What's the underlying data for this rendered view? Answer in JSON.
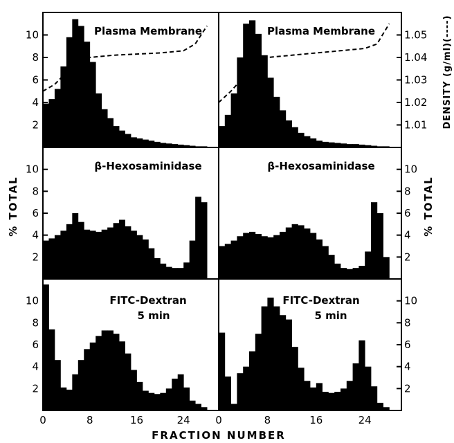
{
  "figure": {
    "xlabel": "FRACTION NUMBER",
    "ylabel_left": "% TOTAL",
    "ylabel_right_middle": "% TOTAL",
    "ylabel_right_top": "DENSITY (g/ml)(----)"
  },
  "chart_data": [
    {
      "type": "bar",
      "panel": "top-left",
      "title": "Plasma Membrane",
      "x": [
        1,
        2,
        3,
        4,
        5,
        6,
        7,
        8,
        9,
        10,
        11,
        12,
        13,
        14,
        15,
        16,
        17,
        18,
        19,
        20,
        21,
        22,
        23,
        24,
        25,
        26,
        27,
        28
      ],
      "values": [
        3.9,
        4.3,
        5.2,
        7.2,
        9.8,
        11.4,
        10.8,
        9.4,
        7.6,
        4.8,
        3.4,
        2.6,
        1.9,
        1.5,
        1.2,
        0.9,
        0.8,
        0.7,
        0.6,
        0.5,
        0.4,
        0.35,
        0.3,
        0.25,
        0.2,
        0.15,
        0.1,
        0.1
      ],
      "density_curve": {
        "x": [
          0,
          2,
          5,
          8,
          12,
          16,
          20,
          24,
          26,
          28
        ],
        "y": [
          1.025,
          1.028,
          1.036,
          1.04,
          1.041,
          1.0415,
          1.042,
          1.043,
          1.046,
          1.054
        ]
      },
      "xlim": [
        0,
        30
      ],
      "ylim": [
        0,
        12
      ],
      "y_ticks": [
        2,
        4,
        6,
        8,
        10
      ],
      "density_ticks": [
        1.01,
        1.02,
        1.03,
        1.04,
        1.05
      ]
    },
    {
      "type": "bar",
      "panel": "top-right",
      "title": "Plasma Membrane",
      "x": [
        1,
        2,
        3,
        4,
        5,
        6,
        7,
        8,
        9,
        10,
        11,
        12,
        13,
        14,
        15,
        16,
        17,
        18,
        19,
        20,
        21,
        22,
        23,
        24,
        25,
        26,
        27,
        28
      ],
      "values": [
        1.9,
        2.9,
        4.8,
        8.0,
        11.0,
        11.3,
        10.1,
        8.2,
        6.2,
        4.5,
        3.3,
        2.4,
        1.8,
        1.3,
        1.0,
        0.8,
        0.6,
        0.5,
        0.45,
        0.4,
        0.35,
        0.3,
        0.3,
        0.25,
        0.2,
        0.15,
        0.1,
        0.1
      ],
      "density_curve": {
        "x": [
          0,
          2,
          4,
          6,
          8,
          12,
          16,
          20,
          24,
          26,
          28
        ],
        "y": [
          1.02,
          1.025,
          1.031,
          1.037,
          1.04,
          1.041,
          1.042,
          1.043,
          1.044,
          1.046,
          1.055
        ]
      },
      "xlim": [
        0,
        30
      ],
      "ylim": [
        0,
        12
      ],
      "density_ticks": [
        1.01,
        1.02,
        1.03,
        1.04,
        1.05
      ]
    },
    {
      "type": "bar",
      "panel": "middle-left",
      "title": "β-Hexosaminidase",
      "x": [
        1,
        2,
        3,
        4,
        5,
        6,
        7,
        8,
        9,
        10,
        11,
        12,
        13,
        14,
        15,
        16,
        17,
        18,
        19,
        20,
        21,
        22,
        23,
        24,
        25,
        26,
        27,
        28
      ],
      "values": [
        3.5,
        3.7,
        4.0,
        4.4,
        5.0,
        6.0,
        5.2,
        4.5,
        4.4,
        4.3,
        4.5,
        4.7,
        5.1,
        5.4,
        4.8,
        4.4,
        4.0,
        3.6,
        2.8,
        1.9,
        1.4,
        1.1,
        1.0,
        1.0,
        1.5,
        3.5,
        7.5,
        7.0
      ],
      "xlim": [
        0,
        30
      ],
      "ylim": [
        0,
        12
      ],
      "y_ticks": [
        2,
        4,
        6,
        8,
        10
      ]
    },
    {
      "type": "bar",
      "panel": "middle-right",
      "title": "β-Hexosaminidase",
      "x": [
        1,
        2,
        3,
        4,
        5,
        6,
        7,
        8,
        9,
        10,
        11,
        12,
        13,
        14,
        15,
        16,
        17,
        18,
        19,
        20,
        21,
        22,
        23,
        24,
        25,
        26,
        27,
        28
      ],
      "values": [
        3.0,
        3.2,
        3.5,
        3.9,
        4.2,
        4.3,
        4.1,
        3.9,
        3.8,
        4.0,
        4.3,
        4.7,
        5.0,
        4.9,
        4.6,
        4.2,
        3.6,
        3.0,
        2.2,
        1.4,
        1.0,
        0.9,
        1.0,
        1.2,
        2.5,
        7.0,
        6.0,
        2.0
      ],
      "xlim": [
        0,
        30
      ],
      "ylim": [
        0,
        12
      ],
      "y_ticks": [
        2,
        4,
        6,
        8,
        10
      ]
    },
    {
      "type": "bar",
      "panel": "bottom-left",
      "title": "FITC-Dextran",
      "subtitle": "5 min",
      "x": [
        1,
        2,
        3,
        4,
        5,
        6,
        7,
        8,
        9,
        10,
        11,
        12,
        13,
        14,
        15,
        16,
        17,
        18,
        19,
        20,
        21,
        22,
        23,
        24,
        25,
        26,
        27,
        28
      ],
      "values": [
        11.5,
        7.4,
        4.6,
        2.1,
        1.9,
        3.3,
        4.6,
        5.6,
        6.2,
        6.8,
        7.3,
        7.3,
        7.0,
        6.3,
        5.2,
        3.7,
        2.6,
        1.8,
        1.6,
        1.5,
        1.6,
        2.0,
        2.9,
        3.3,
        2.1,
        0.9,
        0.6,
        0.3
      ],
      "xlim": [
        0,
        30
      ],
      "ylim": [
        0,
        12
      ],
      "x_ticks": [
        0,
        8,
        16,
        24
      ],
      "y_ticks": [
        2,
        4,
        6,
        8,
        10
      ]
    },
    {
      "type": "bar",
      "panel": "bottom-right",
      "title": "FITC-Dextran",
      "subtitle": "5 min",
      "x": [
        1,
        2,
        3,
        4,
        5,
        6,
        7,
        8,
        9,
        10,
        11,
        12,
        13,
        14,
        15,
        16,
        17,
        18,
        19,
        20,
        21,
        22,
        23,
        24,
        25,
        26,
        27,
        28
      ],
      "values": [
        7.1,
        3.1,
        0.6,
        3.4,
        4.0,
        5.4,
        7.0,
        9.5,
        10.3,
        9.5,
        8.7,
        8.3,
        5.8,
        3.9,
        2.7,
        2.1,
        2.5,
        1.7,
        1.6,
        1.7,
        2.0,
        2.7,
        4.3,
        6.4,
        4.0,
        2.2,
        0.7,
        0.3
      ],
      "xlim": [
        0,
        30
      ],
      "ylim": [
        0,
        12
      ],
      "x_ticks": [
        0,
        8,
        16,
        24
      ],
      "y_ticks": [
        2,
        4,
        6,
        8,
        10
      ]
    }
  ]
}
